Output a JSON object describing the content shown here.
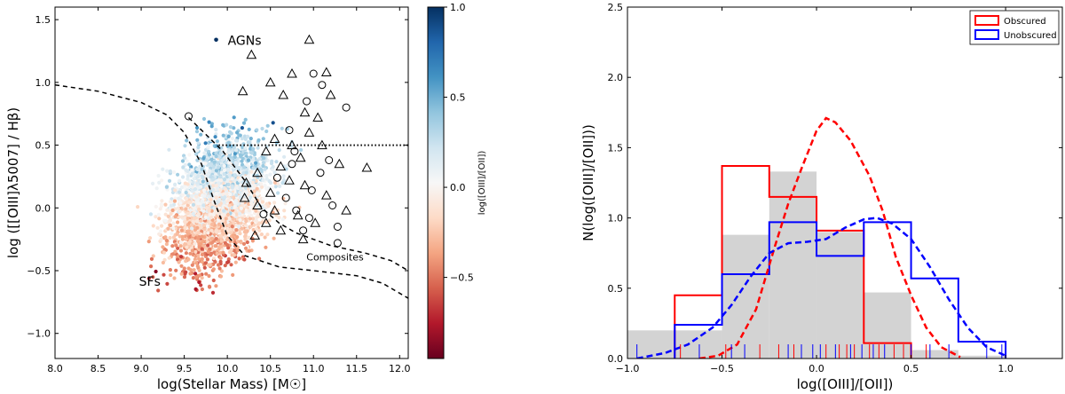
{
  "chart_data": [
    {
      "type": "scatter",
      "panel": "left",
      "xlabel": "log(Stellar Mass) [M☉]",
      "ylabel": "log ([[OIII]λ5007] / Hβ)",
      "xlim": [
        8.0,
        12.1
      ],
      "ylim": [
        -1.2,
        1.6
      ],
      "xticks": [
        "8.0",
        "8.5",
        "9.0",
        "9.5",
        "10.0",
        "10.5",
        "11.0",
        "11.5",
        "12.0"
      ],
      "xtick_values": [
        8.0,
        8.5,
        9.0,
        9.5,
        10.0,
        10.5,
        11.0,
        11.5,
        12.0
      ],
      "yticks": [
        "−1.0",
        "−0.5",
        "0.0",
        "0.5",
        "1.0",
        "1.5"
      ],
      "ytick_values": [
        -1.0,
        -0.5,
        0.0,
        0.5,
        1.0,
        1.5
      ],
      "color_by": "log([OIII]/[OII])",
      "colorbar": {
        "label": "log([OIII]/[OII])",
        "range": [
          -0.95,
          1.0
        ],
        "ticks": [
          "1.0",
          "0.5",
          "0.0",
          "−0.5"
        ],
        "tick_values": [
          1.0,
          0.5,
          0.0,
          -0.5
        ],
        "colormap": [
          "#67001f",
          "#b2182b",
          "#d6604d",
          "#f4a582",
          "#fddbc7",
          "#f7f7f7",
          "#d1e5f0",
          "#92c5de",
          "#4393c3",
          "#2166ac",
          "#053061"
        ]
      },
      "annotations": [
        {
          "text": "AGNs",
          "x": 10.2,
          "y": 1.3
        },
        {
          "text": "SFs",
          "x": 9.1,
          "y": -0.62
        },
        {
          "text": "Composites",
          "x": 11.25,
          "y": -0.42
        }
      ],
      "lines": [
        {
          "name": "Kewley-like boundary",
          "style": "dashed",
          "points": [
            [
              8.0,
              0.98
            ],
            [
              8.5,
              0.93
            ],
            [
              9.0,
              0.84
            ],
            [
              9.3,
              0.74
            ],
            [
              9.5,
              0.6
            ],
            [
              9.7,
              0.35
            ],
            [
              9.85,
              0.05
            ],
            [
              10.0,
              -0.22
            ],
            [
              10.2,
              -0.38
            ],
            [
              10.6,
              -0.47
            ],
            [
              11.0,
              -0.5
            ],
            [
              11.5,
              -0.54
            ],
            [
              11.8,
              -0.6
            ],
            [
              12.1,
              -0.72
            ]
          ]
        },
        {
          "name": "Kauffmann-like boundary",
          "style": "dashed",
          "points": [
            [
              9.55,
              0.72
            ],
            [
              9.7,
              0.62
            ],
            [
              9.95,
              0.45
            ],
            [
              10.2,
              0.22
            ],
            [
              10.4,
              0.0
            ],
            [
              10.6,
              -0.12
            ],
            [
              10.8,
              -0.2
            ],
            [
              11.2,
              -0.3
            ],
            [
              11.6,
              -0.36
            ],
            [
              11.9,
              -0.42
            ],
            [
              12.1,
              -0.5
            ]
          ]
        },
        {
          "name": "AGN threshold",
          "style": "dotted",
          "points": [
            [
              9.9,
              0.5
            ],
            [
              12.1,
              0.5
            ]
          ]
        }
      ],
      "markers": {
        "triangles": [
          [
            10.28,
            1.22
          ],
          [
            10.95,
            1.34
          ],
          [
            10.75,
            1.07
          ],
          [
            11.15,
            1.08
          ],
          [
            10.5,
            1.0
          ],
          [
            10.18,
            0.93
          ],
          [
            10.65,
            0.9
          ],
          [
            11.2,
            0.9
          ],
          [
            10.9,
            0.76
          ],
          [
            11.05,
            0.72
          ],
          [
            10.95,
            0.6
          ],
          [
            10.55,
            0.55
          ],
          [
            11.1,
            0.5
          ],
          [
            10.85,
            0.4
          ],
          [
            11.3,
            0.35
          ],
          [
            10.45,
            0.45
          ],
          [
            10.62,
            0.33
          ],
          [
            10.35,
            0.28
          ],
          [
            11.62,
            0.32
          ],
          [
            10.22,
            0.2
          ],
          [
            10.72,
            0.22
          ],
          [
            10.5,
            0.12
          ],
          [
            10.9,
            0.18
          ],
          [
            11.15,
            0.1
          ],
          [
            10.35,
            0.02
          ],
          [
            10.55,
            -0.02
          ],
          [
            10.82,
            -0.06
          ],
          [
            10.45,
            -0.12
          ],
          [
            11.02,
            -0.12
          ],
          [
            10.62,
            -0.18
          ],
          [
            10.32,
            -0.22
          ],
          [
            10.88,
            -0.25
          ],
          [
            11.38,
            -0.02
          ],
          [
            10.2,
            0.08
          ],
          [
            10.75,
            0.5
          ]
        ],
        "circles": [
          [
            11.0,
            1.07
          ],
          [
            11.1,
            0.98
          ],
          [
            10.92,
            0.85
          ],
          [
            11.38,
            0.8
          ],
          [
            9.55,
            0.73
          ],
          [
            10.72,
            0.62
          ],
          [
            11.08,
            0.28
          ],
          [
            10.75,
            0.35
          ],
          [
            10.98,
            0.14
          ],
          [
            11.22,
            0.02
          ],
          [
            10.8,
            -0.02
          ],
          [
            10.42,
            -0.05
          ],
          [
            10.68,
            0.08
          ],
          [
            10.58,
            0.24
          ],
          [
            10.78,
            0.45
          ],
          [
            11.18,
            0.38
          ],
          [
            10.88,
            -0.18
          ],
          [
            11.28,
            -0.15
          ],
          [
            11.28,
            -0.28
          ],
          [
            10.95,
            -0.08
          ]
        ]
      }
    },
    {
      "type": "histogram",
      "panel": "right",
      "xlabel": "log([OIII]/[OII])",
      "ylabel": "N(log([OIII]/[OII]))",
      "xlim": [
        -1.0,
        1.3
      ],
      "ylim": [
        0.0,
        2.5
      ],
      "xticks": [
        "−1.0",
        "−0.5",
        "0.0",
        "0.5",
        "1.0"
      ],
      "xtick_values": [
        -1.0,
        -0.5,
        0.0,
        0.5,
        1.0
      ],
      "yticks": [
        "0.0",
        "0.5",
        "1.0",
        "1.5",
        "2.0",
        "2.5"
      ],
      "ytick_values": [
        0.0,
        0.5,
        1.0,
        1.5,
        2.0,
        2.5
      ],
      "legend": {
        "position": "top-right",
        "entries": [
          "Obscured",
          "Unobscured"
        ]
      },
      "background_histogram": {
        "color": "#d3d3d3",
        "bins": [
          [
            -1.0,
            -0.5,
            0.2
          ],
          [
            -0.5,
            -0.25,
            0.88
          ],
          [
            -0.25,
            0.0,
            1.33
          ],
          [
            0.0,
            0.25,
            0.9
          ],
          [
            0.25,
            0.5,
            0.47
          ],
          [
            0.5,
            0.75,
            0.06
          ],
          [
            0.75,
            1.0,
            0.02
          ]
        ]
      },
      "series": [
        {
          "name": "Obscured",
          "color": "#ff0000",
          "bins": [
            [
              -0.75,
              -0.5,
              0.45
            ],
            [
              -0.5,
              -0.25,
              1.37
            ],
            [
              -0.25,
              0.0,
              1.15
            ],
            [
              0.0,
              0.25,
              0.91
            ],
            [
              0.25,
              0.5,
              0.11
            ]
          ],
          "kde": [
            [
              -0.62,
              0.0
            ],
            [
              -0.52,
              0.02
            ],
            [
              -0.42,
              0.1
            ],
            [
              -0.32,
              0.35
            ],
            [
              -0.22,
              0.8
            ],
            [
              -0.15,
              1.1
            ],
            [
              -0.08,
              1.35
            ],
            [
              0.0,
              1.62
            ],
            [
              0.05,
              1.71
            ],
            [
              0.1,
              1.68
            ],
            [
              0.18,
              1.55
            ],
            [
              0.28,
              1.3
            ],
            [
              0.35,
              1.05
            ],
            [
              0.42,
              0.72
            ],
            [
              0.5,
              0.45
            ],
            [
              0.58,
              0.22
            ],
            [
              0.66,
              0.08
            ],
            [
              0.76,
              0.01
            ]
          ],
          "rug": [
            -0.72,
            -0.48,
            -0.3,
            -0.2,
            -0.12,
            0.05,
            0.12,
            0.16,
            0.2,
            0.28,
            0.33,
            0.41,
            0.46,
            0.58
          ]
        },
        {
          "name": "Unobscured",
          "color": "#0000ff",
          "bins": [
            [
              -0.75,
              -0.5,
              0.24
            ],
            [
              -0.5,
              -0.25,
              0.6
            ],
            [
              -0.25,
              0.0,
              0.97
            ],
            [
              0.0,
              0.25,
              0.73
            ],
            [
              0.25,
              0.5,
              0.97
            ],
            [
              0.5,
              0.75,
              0.57
            ],
            [
              0.75,
              1.0,
              0.12
            ]
          ],
          "kde": [
            [
              -0.95,
              0.0
            ],
            [
              -0.8,
              0.04
            ],
            [
              -0.68,
              0.1
            ],
            [
              -0.55,
              0.22
            ],
            [
              -0.45,
              0.38
            ],
            [
              -0.35,
              0.58
            ],
            [
              -0.25,
              0.75
            ],
            [
              -0.15,
              0.82
            ],
            [
              -0.05,
              0.83
            ],
            [
              0.05,
              0.85
            ],
            [
              0.15,
              0.93
            ],
            [
              0.25,
              0.99
            ],
            [
              0.32,
              1.0
            ],
            [
              0.4,
              0.96
            ],
            [
              0.5,
              0.85
            ],
            [
              0.6,
              0.65
            ],
            [
              0.7,
              0.42
            ],
            [
              0.8,
              0.22
            ],
            [
              0.9,
              0.08
            ],
            [
              1.0,
              0.02
            ]
          ],
          "rug": [
            -0.95,
            -0.62,
            -0.45,
            -0.38,
            -0.15,
            -0.08,
            -0.02,
            0.02,
            0.1,
            0.18,
            0.24,
            0.3,
            0.36,
            0.5,
            0.6,
            0.7,
            0.9,
            0.98
          ]
        }
      ]
    }
  ]
}
